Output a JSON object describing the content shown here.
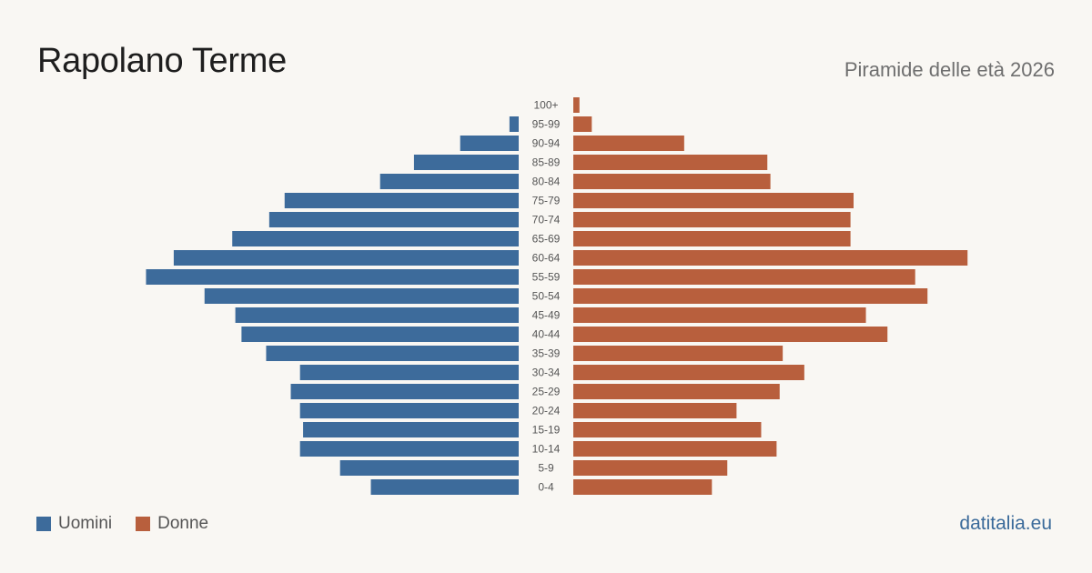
{
  "header": {
    "title": "Rapolano Terme",
    "subtitle": "Piramide delle età 2026"
  },
  "legend": {
    "men_label": "Uomini",
    "women_label": "Donne"
  },
  "footer": {
    "brand": "datitalia.eu"
  },
  "colors": {
    "men": "#3d6b9b",
    "women": "#b85f3d",
    "label": "#555555"
  },
  "chart_data": {
    "type": "bar",
    "orientation": "horizontal-pyramid",
    "categories": [
      "100+",
      "95-99",
      "90-94",
      "85-89",
      "80-84",
      "75-79",
      "70-74",
      "65-69",
      "60-64",
      "55-59",
      "50-54",
      "45-49",
      "40-44",
      "35-39",
      "30-34",
      "25-29",
      "20-24",
      "15-19",
      "10-14",
      "5-9",
      "0-4"
    ],
    "series": [
      {
        "name": "Uomini",
        "values": [
          0,
          3,
          19,
          34,
          45,
          76,
          81,
          93,
          112,
          121,
          102,
          92,
          90,
          82,
          71,
          74,
          71,
          70,
          71,
          58,
          48
        ]
      },
      {
        "name": "Donne",
        "values": [
          2,
          6,
          36,
          63,
          64,
          91,
          90,
          90,
          128,
          111,
          115,
          95,
          102,
          68,
          75,
          67,
          53,
          61,
          66,
          50,
          45
        ]
      }
    ],
    "xlim": [
      0,
      130
    ],
    "grid": false,
    "legend_position": "bottom-left"
  }
}
